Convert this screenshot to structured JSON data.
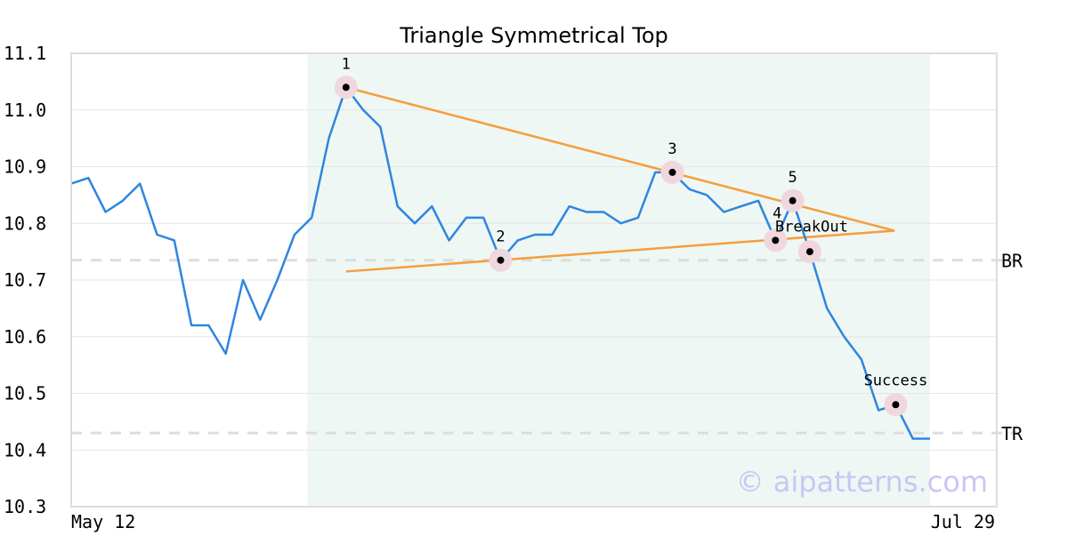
{
  "chart_data": {
    "type": "line",
    "title": "Triangle Symmetrical Top",
    "ylim": [
      10.3,
      11.1
    ],
    "yticks": [
      "10.3",
      "10.4",
      "10.5",
      "10.6",
      "10.7",
      "10.8",
      "10.9",
      "11.0",
      "11.1"
    ],
    "grid": true,
    "x_start_label": "May 12",
    "x_end_label": "Jul 29",
    "watermark": "© aipatterns.com",
    "colors": {
      "price": "#2e86de",
      "trendline": "#f79d3e",
      "pattern_zone": "#eef7f3",
      "level_line": "#dddddd",
      "point_halo": "#f0d7dd",
      "point": "#000000",
      "axis_frame": "#dddddd",
      "watermark": "#c9c6f5"
    },
    "price_series": [
      10.87,
      10.88,
      10.82,
      10.84,
      10.87,
      10.78,
      10.77,
      10.62,
      10.62,
      10.57,
      10.7,
      10.63,
      10.7,
      10.78,
      10.81,
      10.95,
      11.04,
      11.0,
      10.97,
      10.83,
      10.8,
      10.83,
      10.77,
      10.81,
      10.81,
      10.735,
      10.77,
      10.78,
      10.78,
      10.83,
      10.82,
      10.82,
      10.8,
      10.81,
      10.89,
      10.89,
      10.86,
      10.85,
      10.82,
      10.83,
      10.84,
      10.77,
      10.84,
      10.75,
      10.65,
      10.6,
      10.56,
      10.47,
      10.48,
      10.42,
      10.42
    ],
    "pattern_zone": {
      "start_index": 14,
      "end_index": 50
    },
    "trendlines": [
      {
        "name": "upper",
        "from": [
          16,
          11.04
        ],
        "to": [
          47,
          10.787
        ]
      },
      {
        "name": "lower",
        "from": [
          16,
          10.715
        ],
        "to": [
          47,
          10.787
        ]
      }
    ],
    "levels": [
      {
        "label": "BR",
        "value": 10.735
      },
      {
        "label": "TR",
        "value": 10.43
      }
    ],
    "points": [
      {
        "label": "1",
        "index": 16,
        "value": 11.04
      },
      {
        "label": "2",
        "index": 25,
        "value": 10.735
      },
      {
        "label": "3",
        "index": 35,
        "value": 10.89
      },
      {
        "label": "4",
        "index": 41,
        "value": 10.77
      },
      {
        "label": "5",
        "index": 42,
        "value": 10.84
      },
      {
        "label": "BreakOut",
        "index": 43,
        "value": 10.75
      },
      {
        "label": "Success",
        "index": 48,
        "value": 10.48
      }
    ]
  }
}
